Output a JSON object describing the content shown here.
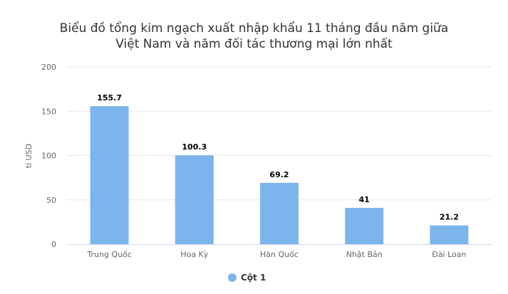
{
  "chart_data": {
    "type": "bar",
    "title_lines": [
      "Biểu đồ tổng kim ngạch xuất nhập khẩu 11 tháng đầu năm giữa",
      "Việt Nam và năm đối tác thương mại lớn nhất"
    ],
    "ylabel": "tỉ USD",
    "xlabel": "",
    "ylim": [
      0,
      200
    ],
    "yticks": [
      0,
      50,
      100,
      150,
      200
    ],
    "grid": true,
    "categories": [
      "Trung Quốc",
      "Hoa Kỳ",
      "Hàn Quốc",
      "Nhật Bản",
      "Đài Loan"
    ],
    "series": [
      {
        "name": "Cột 1",
        "values": [
          155.7,
          100.3,
          69.2,
          41,
          21.2
        ],
        "color": "#7cb5ec"
      }
    ],
    "legend_position": "bottom"
  }
}
